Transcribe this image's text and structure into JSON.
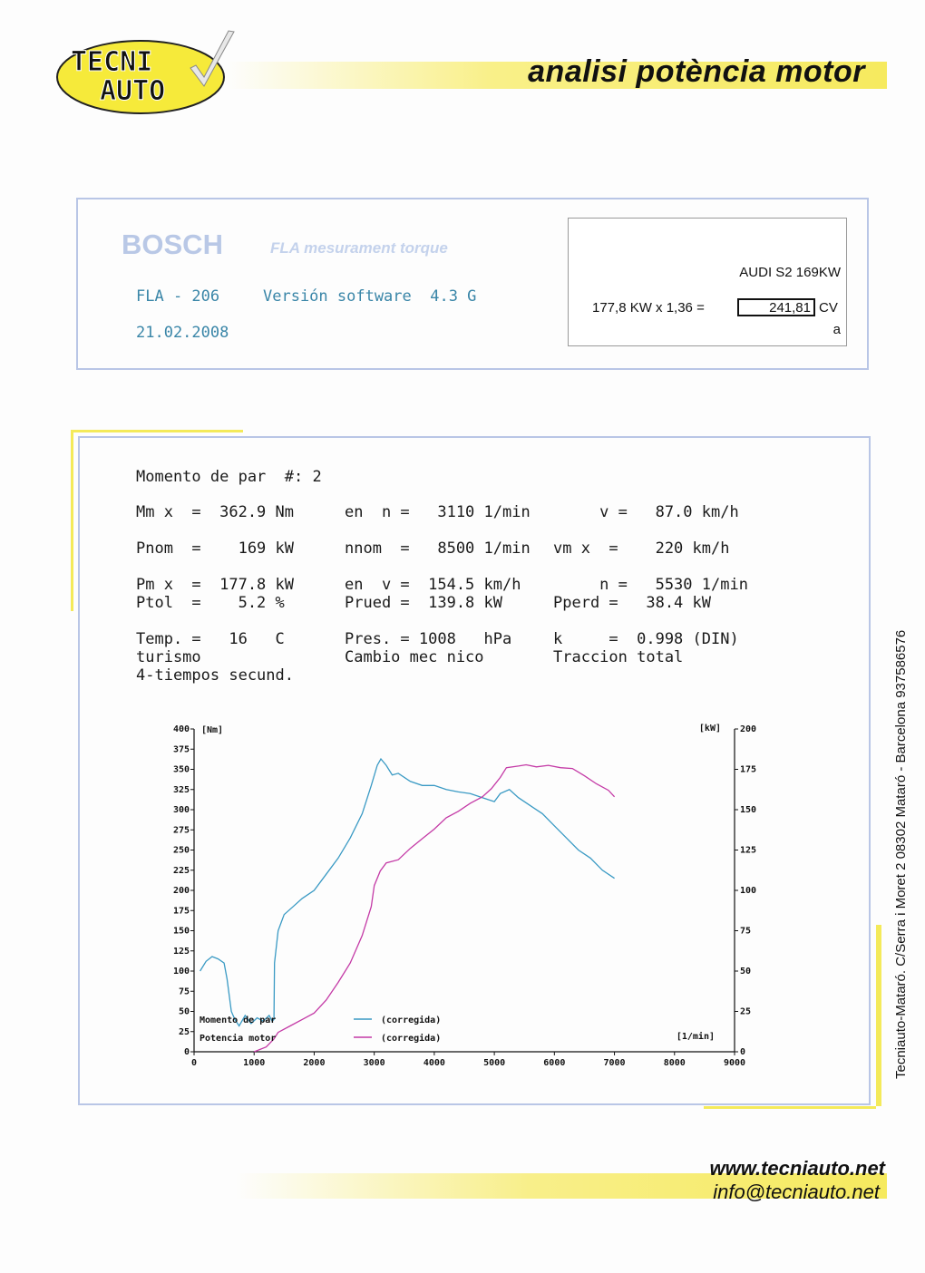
{
  "header": {
    "logo_line1": "TECNI",
    "logo_line2": "AUTO",
    "title": "analisi potència motor"
  },
  "device": {
    "brand": "BOSCH",
    "subtitle": "FLA mesurament torque",
    "model": "FLA - 206",
    "software": "Versión software  4.3 G",
    "date": "21.02.2008"
  },
  "result_box": {
    "vehicle": "AUDI S2 169KW",
    "formula": "177,8 KW x 1,36 =",
    "cv_value": "241,81",
    "cv_unit": "CV",
    "note": "a"
  },
  "measurement": {
    "heading": "Momento de par  #: 2",
    "rows": [
      [
        "Mm x  =  362.9 Nm",
        "en  n =   3110 1/min",
        "     v =   87.0 km/h"
      ],
      [
        "Pnom  =    169 kW",
        "nnom  =   8500 1/min",
        "vm x  =    220 km/h"
      ],
      [
        "Pm x  =  177.8 kW",
        "en  v =  154.5 km/h",
        "     n =   5530 1/min"
      ],
      [
        "Ptol  =    5.2 %",
        "Prued =  139.8 kW",
        "Pperd =   38.4 kW"
      ],
      [
        "Temp. =   16   C",
        "Pres. = 1008   hPa",
        "k     =  0.998 (DIN)"
      ],
      [
        "turismo",
        "Cambio mec nico",
        "Traccion total"
      ],
      [
        "4-tiempos secund.",
        "",
        ""
      ]
    ]
  },
  "chart_data": {
    "type": "line",
    "xlabel": "[1/min]",
    "ylabel": "[Nm]",
    "y2label": "[kW]",
    "xlim": [
      0,
      9000
    ],
    "ylim": [
      0,
      400
    ],
    "y2lim": [
      0,
      200
    ],
    "x_ticks": [
      "0",
      "1000",
      "2000",
      "3000",
      "4000",
      "5000",
      "6000",
      "7000",
      "8000",
      "9000"
    ],
    "y_ticks": [
      "0",
      "25",
      "50",
      "75",
      "100",
      "125",
      "150",
      "175",
      "200",
      "225",
      "250",
      "275",
      "300",
      "325",
      "350",
      "375",
      "400"
    ],
    "y2_ticks": [
      "0",
      "25",
      "50",
      "75",
      "100",
      "125",
      "150",
      "175",
      "200"
    ],
    "legend": [
      {
        "name": "Momento de par",
        "tag": "(corregida)",
        "color": "#3a9ac4"
      },
      {
        "name": "Potencia motor",
        "tag": "(corregida)",
        "color": "#c43aa6"
      }
    ],
    "series": [
      {
        "name": "Momento de par",
        "axis": "left",
        "color": "#3a9ac4",
        "points": [
          [
            100,
            100
          ],
          [
            200,
            112
          ],
          [
            300,
            118
          ],
          [
            400,
            115
          ],
          [
            500,
            110
          ],
          [
            550,
            90
          ],
          [
            620,
            50
          ],
          [
            680,
            40
          ],
          [
            750,
            32
          ],
          [
            850,
            45
          ],
          [
            950,
            35
          ],
          [
            1050,
            42
          ],
          [
            1150,
            38
          ],
          [
            1250,
            45
          ],
          [
            1300,
            38
          ],
          [
            1330,
            40
          ],
          [
            1340,
            110
          ],
          [
            1400,
            150
          ],
          [
            1500,
            170
          ],
          [
            1650,
            180
          ],
          [
            1800,
            190
          ],
          [
            2000,
            200
          ],
          [
            2200,
            220
          ],
          [
            2400,
            240
          ],
          [
            2600,
            265
          ],
          [
            2800,
            295
          ],
          [
            2950,
            330
          ],
          [
            3050,
            355
          ],
          [
            3110,
            362.9
          ],
          [
            3200,
            355
          ],
          [
            3300,
            343
          ],
          [
            3400,
            345
          ],
          [
            3600,
            335
          ],
          [
            3800,
            330
          ],
          [
            4000,
            330
          ],
          [
            4200,
            325
          ],
          [
            4400,
            322
          ],
          [
            4600,
            320
          ],
          [
            4800,
            315
          ],
          [
            5000,
            310
          ],
          [
            5100,
            320
          ],
          [
            5250,
            325
          ],
          [
            5400,
            315
          ],
          [
            5600,
            305
          ],
          [
            5800,
            295
          ],
          [
            6000,
            280
          ],
          [
            6200,
            265
          ],
          [
            6400,
            250
          ],
          [
            6600,
            240
          ],
          [
            6800,
            225
          ],
          [
            7000,
            215
          ]
        ]
      },
      {
        "name": "Potencia motor",
        "axis": "right",
        "color": "#c43aa6",
        "points": [
          [
            1000,
            0
          ],
          [
            1200,
            3
          ],
          [
            1330,
            8
          ],
          [
            1400,
            12
          ],
          [
            1600,
            16
          ],
          [
            1800,
            20
          ],
          [
            2000,
            24
          ],
          [
            2200,
            32
          ],
          [
            2400,
            43
          ],
          [
            2600,
            55
          ],
          [
            2800,
            72
          ],
          [
            2950,
            90
          ],
          [
            3000,
            103
          ],
          [
            3100,
            112
          ],
          [
            3200,
            117
          ],
          [
            3400,
            119
          ],
          [
            3600,
            126
          ],
          [
            3800,
            132
          ],
          [
            4000,
            138
          ],
          [
            4200,
            145
          ],
          [
            4400,
            149
          ],
          [
            4600,
            154
          ],
          [
            4800,
            158
          ],
          [
            4950,
            163
          ],
          [
            5100,
            170
          ],
          [
            5200,
            176
          ],
          [
            5400,
            177
          ],
          [
            5530,
            177.8
          ],
          [
            5700,
            176.5
          ],
          [
            5900,
            177.5
          ],
          [
            6100,
            176
          ],
          [
            6300,
            175.5
          ],
          [
            6500,
            171
          ],
          [
            6700,
            166
          ],
          [
            6900,
            162
          ],
          [
            7000,
            158
          ]
        ]
      }
    ]
  },
  "footer": {
    "web": "www.tecniauto.net",
    "email": "info@tecniauto.net",
    "address": "Tecniauto-Mataró.  C/Serra i Moret  2   08302 Mataró - Barcelona  937586576"
  }
}
